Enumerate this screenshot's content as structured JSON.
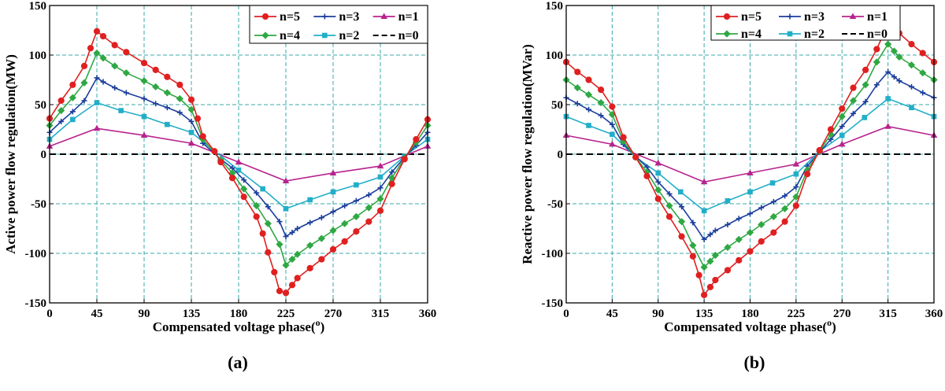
{
  "chart_data": [
    {
      "type": "line",
      "panel_label": "(a)",
      "xlabel": "Compensated voltage phase(o)",
      "ylabel": "Active power flow regulation(MW)",
      "xlim": [
        0,
        360
      ],
      "ylim": [
        -150,
        150
      ],
      "xticks": [
        0,
        45,
        90,
        135,
        180,
        225,
        270,
        315,
        360
      ],
      "yticks": [
        -150,
        -100,
        -50,
        0,
        50,
        100,
        150
      ],
      "grid": true,
      "legend_position": "top-right",
      "series": [
        {
          "name": "n=5",
          "color": "#e02020",
          "marker": "circle",
          "x": [
            0,
            11,
            22,
            33,
            39,
            45,
            51,
            62,
            73,
            90,
            101,
            112,
            124,
            135,
            141,
            146,
            157,
            163,
            174,
            185,
            197,
            203,
            208,
            214,
            219,
            225,
            231,
            236,
            248,
            259,
            270,
            281,
            292,
            304,
            315,
            326,
            338,
            349,
            360
          ],
          "y": [
            36,
            54,
            70,
            89,
            107,
            124,
            119,
            110,
            103,
            92,
            85,
            78,
            70,
            55,
            36,
            18,
            3,
            -8,
            -24,
            -43,
            -63,
            -80,
            -99,
            -119,
            -138,
            -140,
            -132,
            -125,
            -115,
            -106,
            -96,
            -88,
            -78,
            -68,
            -57,
            -30,
            -5,
            15,
            35
          ]
        },
        {
          "name": "n=4",
          "color": "#2fa843",
          "marker": "diamond",
          "x": [
            0,
            11,
            22,
            33,
            45,
            51,
            62,
            73,
            90,
            101,
            112,
            124,
            135,
            146,
            163,
            174,
            185,
            197,
            208,
            219,
            225,
            231,
            236,
            248,
            259,
            270,
            281,
            292,
            304,
            315,
            326,
            338,
            349,
            360
          ],
          "y": [
            29,
            44,
            57,
            72,
            102,
            97,
            89,
            82,
            74,
            68,
            62,
            56,
            45,
            15,
            -6,
            -19,
            -35,
            -52,
            -70,
            -91,
            -112,
            -106,
            -101,
            -92,
            -85,
            -77,
            -70,
            -63,
            -54,
            -45,
            -24,
            -4,
            12,
            29
          ]
        },
        {
          "name": "n=3",
          "color": "#1b3e9c",
          "marker": "plus",
          "x": [
            0,
            11,
            22,
            33,
            45,
            51,
            62,
            73,
            90,
            101,
            112,
            124,
            135,
            146,
            163,
            174,
            185,
            197,
            208,
            219,
            225,
            231,
            236,
            248,
            259,
            270,
            281,
            292,
            304,
            315,
            326,
            338,
            349,
            360
          ],
          "y": [
            22,
            33,
            43,
            54,
            77,
            73,
            67,
            62,
            56,
            51,
            47,
            42,
            33,
            11,
            -5,
            -14,
            -26,
            -39,
            -53,
            -68,
            -83,
            -79,
            -75,
            -69,
            -64,
            -58,
            -52,
            -47,
            -41,
            -34,
            -18,
            -3,
            9,
            22
          ]
        },
        {
          "name": "n=2",
          "color": "#22aec8",
          "marker": "square",
          "x": [
            0,
            22,
            45,
            68,
            90,
            112,
            135,
            180,
            203,
            225,
            248,
            270,
            292,
            315,
            338,
            360
          ],
          "y": [
            15,
            35,
            52,
            44,
            38,
            30,
            22,
            -16,
            -35,
            -55,
            -46,
            -38,
            -31,
            -23,
            -2,
            15
          ]
        },
        {
          "name": "n=1",
          "color": "#b8238e",
          "marker": "triangle",
          "x": [
            0,
            45,
            90,
            135,
            180,
            225,
            270,
            315,
            360
          ],
          "y": [
            8,
            26,
            19,
            11,
            -8,
            -27,
            -19,
            -12,
            8
          ]
        },
        {
          "name": "n=0",
          "color": "#000000",
          "marker": "none",
          "x": [
            0,
            360
          ],
          "y": [
            0,
            0
          ]
        }
      ]
    },
    {
      "type": "line",
      "panel_label": "(b)",
      "xlabel": "Compensated voltage phase(o)",
      "ylabel": "Reactive power flow regulation(MVar)",
      "xlim": [
        0,
        360
      ],
      "ylim": [
        -150,
        150
      ],
      "xticks": [
        0,
        45,
        90,
        135,
        180,
        225,
        270,
        315,
        360
      ],
      "yticks": [
        -150,
        -100,
        -50,
        0,
        50,
        100,
        150
      ],
      "grid": true,
      "legend_position": "top-left",
      "series": [
        {
          "name": "n=5",
          "color": "#e02020",
          "marker": "circle",
          "x": [
            0,
            11,
            22,
            34,
            45,
            56,
            68,
            79,
            90,
            101,
            113,
            124,
            130,
            135,
            141,
            146,
            158,
            169,
            180,
            191,
            203,
            214,
            225,
            236,
            248,
            259,
            270,
            281,
            293,
            304,
            310,
            315,
            321,
            326,
            338,
            349,
            360
          ],
          "y": [
            93,
            83,
            75,
            65,
            48,
            17,
            -3,
            -22,
            -45,
            -63,
            -83,
            -103,
            -122,
            -142,
            -134,
            -127,
            -117,
            -107,
            -98,
            -88,
            -79,
            -68,
            -52,
            -20,
            4,
            25,
            46,
            67,
            85,
            106,
            120,
            137,
            130,
            122,
            111,
            102,
            93
          ]
        },
        {
          "name": "n=4",
          "color": "#2fa843",
          "marker": "diamond",
          "x": [
            0,
            11,
            22,
            34,
            45,
            56,
            68,
            79,
            90,
            101,
            113,
            124,
            135,
            141,
            146,
            158,
            169,
            180,
            191,
            203,
            214,
            225,
            236,
            248,
            259,
            270,
            281,
            293,
            304,
            315,
            321,
            326,
            338,
            349,
            360
          ],
          "y": [
            75,
            67,
            60,
            52,
            40,
            13,
            -3,
            -18,
            -36,
            -52,
            -68,
            -92,
            -114,
            -108,
            -102,
            -94,
            -86,
            -79,
            -71,
            -63,
            -55,
            -43,
            -16,
            3,
            20,
            38,
            54,
            70,
            93,
            111,
            104,
            98,
            90,
            82,
            75
          ]
        },
        {
          "name": "n=3",
          "color": "#1b3e9c",
          "marker": "plus",
          "x": [
            0,
            11,
            22,
            34,
            45,
            56,
            68,
            79,
            90,
            101,
            113,
            124,
            135,
            141,
            146,
            158,
            169,
            180,
            191,
            203,
            214,
            225,
            236,
            248,
            259,
            270,
            281,
            293,
            304,
            315,
            321,
            326,
            338,
            349,
            360
          ],
          "y": [
            57,
            51,
            45,
            39,
            30,
            10,
            -2,
            -13,
            -28,
            -40,
            -53,
            -69,
            -86,
            -81,
            -77,
            -71,
            -65,
            -60,
            -54,
            -48,
            -42,
            -33,
            -12,
            2,
            15,
            28,
            41,
            53,
            70,
            83,
            78,
            74,
            68,
            62,
            57
          ]
        },
        {
          "name": "n=2",
          "color": "#22aec8",
          "marker": "square",
          "x": [
            0,
            22,
            45,
            68,
            90,
            112,
            135,
            158,
            180,
            202,
            225,
            248,
            270,
            292,
            315,
            338,
            360
          ],
          "y": [
            38,
            29,
            20,
            -3,
            -19,
            -38,
            -57,
            -47,
            -38,
            -29,
            -20,
            3,
            19,
            37,
            56,
            47,
            38
          ]
        },
        {
          "name": "n=1",
          "color": "#b8238e",
          "marker": "triangle",
          "x": [
            0,
            45,
            90,
            135,
            180,
            225,
            270,
            315,
            360
          ],
          "y": [
            19,
            10,
            -9,
            -28,
            -19,
            -10,
            10,
            28,
            19
          ]
        },
        {
          "name": "n=0",
          "color": "#000000",
          "marker": "none",
          "x": [
            0,
            360
          ],
          "y": [
            0,
            0
          ]
        }
      ]
    }
  ]
}
